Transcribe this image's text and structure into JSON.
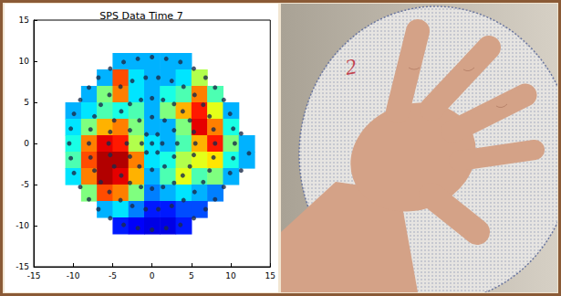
{
  "chart_data": {
    "type": "heatmap",
    "title": "SPS Data Time 7",
    "xlim": [
      -15,
      15
    ],
    "ylim": [
      -15,
      15
    ],
    "xticks": [
      -15,
      -10,
      -5,
      0,
      5,
      10,
      15
    ],
    "yticks": [
      -15,
      -10,
      -5,
      0,
      5,
      10,
      15
    ],
    "grid": false,
    "heatmap": {
      "x": [
        -10,
        -8,
        -6,
        -4,
        -2,
        0,
        2,
        4,
        6,
        8,
        10,
        12
      ],
      "y": [
        10,
        8,
        6,
        4,
        2,
        0,
        -2,
        -4,
        -6,
        -8,
        -10
      ],
      "cells": [
        [
          null,
          null,
          null,
          0.3,
          0.3,
          0.3,
          0.3,
          0.3,
          null,
          null,
          null,
          null
        ],
        [
          null,
          null,
          0.3,
          0.8,
          0.35,
          0.3,
          0.3,
          0.35,
          0.55,
          null,
          null,
          null
        ],
        [
          null,
          0.3,
          0.5,
          0.75,
          0.35,
          0.3,
          0.4,
          0.45,
          0.75,
          0.45,
          null,
          null
        ],
        [
          0.3,
          0.35,
          0.45,
          0.4,
          0.45,
          0.3,
          0.5,
          0.7,
          0.85,
          0.6,
          0.3,
          null
        ],
        [
          0.35,
          0.5,
          0.7,
          0.75,
          0.5,
          0.3,
          0.3,
          0.5,
          0.9,
          0.75,
          0.4,
          null
        ],
        [
          0.4,
          0.75,
          0.9,
          0.85,
          0.55,
          0.35,
          0.3,
          0.45,
          0.7,
          0.85,
          0.5,
          0.3
        ],
        [
          0.45,
          0.8,
          0.95,
          0.95,
          0.75,
          0.35,
          0.4,
          0.55,
          0.6,
          0.65,
          0.4,
          0.3
        ],
        [
          0.35,
          0.75,
          0.95,
          0.9,
          0.7,
          0.3,
          0.45,
          0.6,
          0.45,
          0.5,
          0.3,
          null
        ],
        [
          null,
          0.5,
          0.8,
          0.75,
          0.5,
          0.25,
          0.3,
          0.35,
          0.3,
          0.25,
          null,
          null
        ],
        [
          null,
          null,
          0.3,
          0.35,
          0.25,
          0.15,
          0.15,
          0.2,
          0.2,
          null,
          null,
          null
        ],
        [
          null,
          null,
          null,
          0.15,
          0.12,
          0.1,
          0.1,
          0.15,
          null,
          null,
          null,
          null
        ]
      ],
      "color_range": [
        0,
        1
      ]
    },
    "points": {
      "marker": "o",
      "color": "#1c2a48",
      "x": [
        10.5,
        10.3,
        9.9,
        9.1,
        8.0,
        6.8,
        5.3,
        3.6,
        1.8,
        0,
        -1.8,
        -3.6,
        -5.3,
        -6.8,
        -8.0,
        -9.1,
        -9.9,
        -10.3,
        -10.5,
        -10.3,
        -9.9,
        -9.1,
        -8.0,
        -6.8,
        -5.3,
        -3.6,
        -1.8,
        0,
        1.8,
        3.6,
        5.3,
        6.8,
        8.0,
        9.1,
        9.9,
        10.3,
        11.3,
        12.3,
        11.3,
        8,
        7.8,
        7.3,
        6.5,
        5.4,
        4.0,
        2.5,
        0.8,
        -0.8,
        -2.5,
        -4.0,
        -5.4,
        -6.5,
        -7.3,
        -7.8,
        -8,
        -7.8,
        -7.3,
        -6.5,
        -5.4,
        -4.0,
        -2.5,
        -0.8,
        0.8,
        2.5,
        4.0,
        5.4,
        6.5,
        7.3,
        7.8,
        5.5,
        5.3,
        4.8,
        3.9,
        2.8,
        1.4,
        0,
        -1.4,
        -2.8,
        -3.9,
        -4.8,
        -5.3,
        -5.5,
        -5.3,
        -4.8,
        -3.9,
        -2.8,
        -1.4,
        0,
        1.4,
        2.8,
        3.9,
        4.8,
        5.3,
        3.2,
        2.8,
        1.6,
        0,
        -1.6,
        -2.8,
        -3.2,
        -2.8,
        -1.6,
        0,
        1.6,
        2.8,
        1.3,
        0.7,
        -0.7,
        -1.3,
        -0.7,
        0.7,
        0
      ],
      "y": [
        0,
        1.8,
        3.6,
        5.3,
        6.8,
        8.0,
        9.1,
        9.9,
        10.3,
        10.5,
        10.3,
        9.9,
        9.1,
        8.0,
        6.8,
        5.3,
        3.6,
        1.8,
        0,
        -1.8,
        -3.6,
        -5.3,
        -6.8,
        -8.0,
        -9.1,
        -9.9,
        -10.3,
        -10.5,
        -10.3,
        -9.9,
        -9.1,
        -8.0,
        -6.8,
        -5.3,
        -3.6,
        -1.8,
        1.2,
        -1.2,
        -3.3,
        0,
        1.7,
        3.3,
        4.7,
        5.9,
        6.9,
        7.6,
        8.0,
        8.0,
        7.6,
        6.9,
        5.9,
        4.7,
        3.3,
        1.7,
        0,
        -1.7,
        -3.3,
        -4.7,
        -5.9,
        -6.9,
        -7.6,
        -8.0,
        -8.0,
        -7.6,
        -6.9,
        -5.9,
        -4.7,
        -3.3,
        -1.7,
        0,
        1.4,
        2.8,
        3.9,
        4.8,
        5.3,
        5.5,
        5.3,
        4.8,
        3.9,
        2.8,
        1.4,
        0,
        -1.4,
        -2.8,
        -3.9,
        -4.8,
        -5.3,
        -5.5,
        -5.3,
        -4.8,
        -3.9,
        -2.8,
        -1.4,
        0,
        1.6,
        2.8,
        3.2,
        2.8,
        1.6,
        0,
        -1.6,
        -2.8,
        -3.2,
        -2.8,
        -1.6,
        0,
        1.1,
        1.1,
        0,
        -1.1,
        -1.1,
        0
      ]
    }
  },
  "photo": {
    "marks": [
      "2"
    ]
  }
}
